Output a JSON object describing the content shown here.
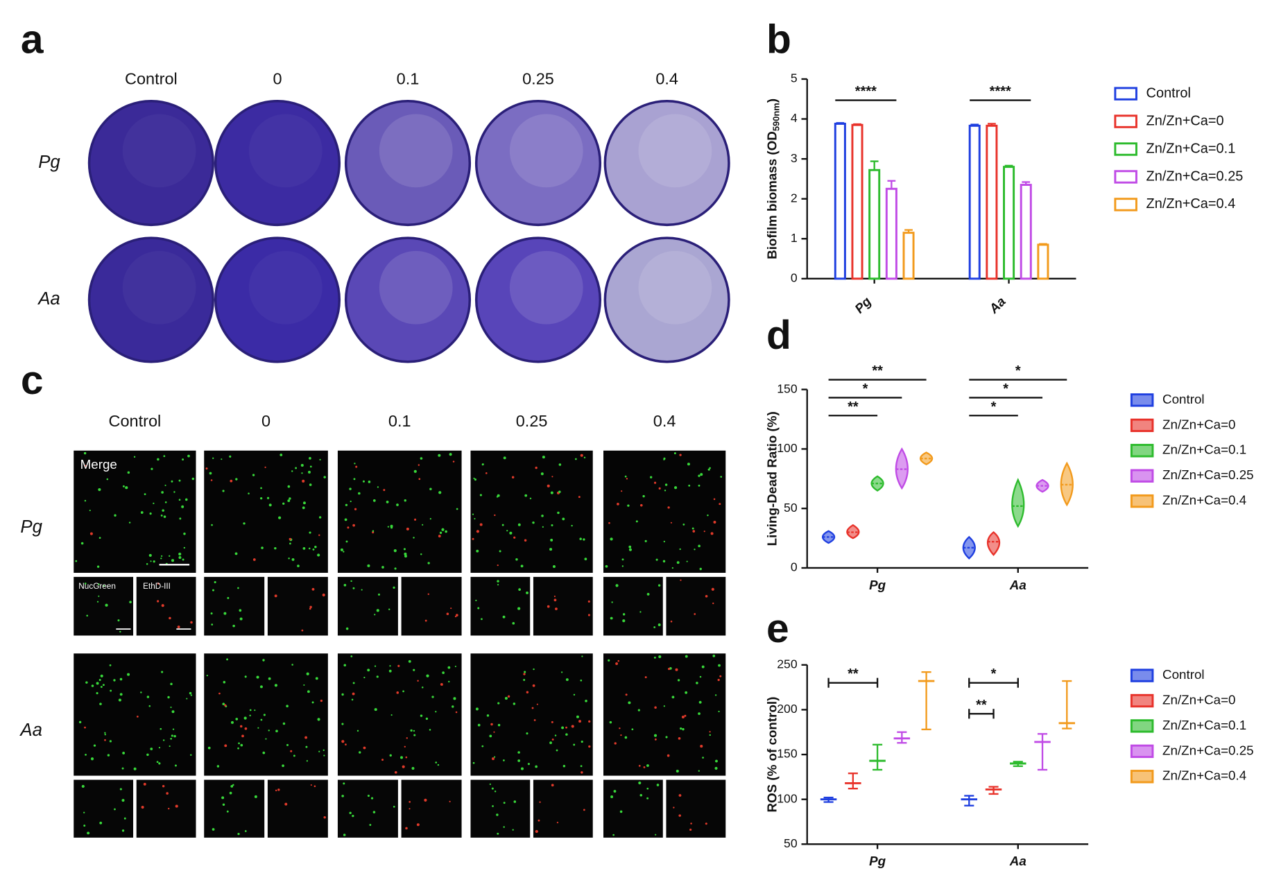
{
  "panel_labels": [
    "a",
    "b",
    "c",
    "d",
    "e"
  ],
  "panel_a": {
    "columns": [
      "Control",
      "0",
      "0.1",
      "0.25",
      "0.4"
    ],
    "rows": [
      "Pg",
      "Aa"
    ]
  },
  "panel_c": {
    "columns": [
      "Control",
      "0",
      "0.1",
      "0.25",
      "0.4"
    ],
    "rows": [
      "Pg",
      "Aa"
    ],
    "channels": [
      "Merge",
      "NucGreen",
      "EthD-III"
    ]
  },
  "chart_data": [
    {
      "type": "bar",
      "ylabel": "Biofilm biomass (OD",
      "ylabel_subscript": "590nm",
      "ylabel_suffix": ")",
      "categories": [
        "Pg",
        "Aa"
      ],
      "ylim": [
        0,
        5
      ],
      "yticks": [
        0,
        1,
        2,
        3,
        4,
        5
      ],
      "legend": "right",
      "series": [
        {
          "name": "Control",
          "color": "#1f3fe0",
          "values": [
            3.88,
            3.83
          ],
          "errors": [
            0.02,
            0.03
          ]
        },
        {
          "name": "Zn/Zn+Ca=0",
          "color": "#e8322a",
          "values": [
            3.85,
            3.83
          ],
          "errors": [
            0.02,
            0.05
          ]
        },
        {
          "name": "Zn/Zn+Ca=0.1",
          "color": "#2dbb2d",
          "values": [
            2.72,
            2.8
          ],
          "errors": [
            0.22,
            0.03
          ]
        },
        {
          "name": "Zn/Zn+Ca=0.25",
          "color": "#c04be6",
          "values": [
            2.25,
            2.35
          ],
          "errors": [
            0.2,
            0.07
          ]
        },
        {
          "name": "Zn/Zn+Ca=0.4",
          "color": "#f29a1c",
          "values": [
            1.15,
            0.85
          ],
          "errors": [
            0.07,
            0.02
          ]
        }
      ],
      "annotations": [
        {
          "text": "****",
          "category": 0,
          "from_series": 0,
          "to_series": 3
        },
        {
          "text": "****",
          "category": 1,
          "from_series": 0,
          "to_series": 3
        }
      ]
    },
    {
      "type": "violin",
      "ylabel": "Living-Dead Ratio (%)",
      "categories": [
        "Pg",
        "Aa"
      ],
      "ylim": [
        0,
        150
      ],
      "yticks": [
        0,
        50,
        100,
        150
      ],
      "legend": "right",
      "series": [
        {
          "name": "Control",
          "color": "#1f3fe0",
          "values": [
            26,
            17
          ],
          "min": [
            21,
            8
          ],
          "max": [
            31,
            26
          ]
        },
        {
          "name": "Zn/Zn+Ca=0",
          "color": "#e8322a",
          "values": [
            30,
            22
          ],
          "min": [
            25,
            11
          ],
          "max": [
            36,
            30
          ]
        },
        {
          "name": "Zn/Zn+Ca=0.1",
          "color": "#2dbb2d",
          "values": [
            71,
            52
          ],
          "min": [
            65,
            35
          ],
          "max": [
            77,
            74
          ]
        },
        {
          "name": "Zn/Zn+Ca=0.25",
          "color": "#c04be6",
          "values": [
            83,
            69
          ],
          "min": [
            67,
            64
          ],
          "max": [
            100,
            74
          ]
        },
        {
          "name": "Zn/Zn+Ca=0.4",
          "color": "#f29a1c",
          "values": [
            92,
            70
          ],
          "min": [
            87,
            53
          ],
          "max": [
            97,
            88
          ]
        }
      ],
      "annotations": [
        {
          "text": "**",
          "category": 0,
          "from_series": 0,
          "to_series": 4
        },
        {
          "text": "*",
          "category": 0,
          "from_series": 0,
          "to_series": 3
        },
        {
          "text": "**",
          "category": 0,
          "from_series": 0,
          "to_series": 2
        },
        {
          "text": "*",
          "category": 1,
          "from_series": 0,
          "to_series": 4
        },
        {
          "text": "*",
          "category": 1,
          "from_series": 0,
          "to_series": 3
        },
        {
          "text": "*",
          "category": 1,
          "from_series": 0,
          "to_series": 2
        }
      ]
    },
    {
      "type": "floating_bar",
      "ylabel": "ROS (% of control)",
      "categories": [
        "Pg",
        "Aa"
      ],
      "ylim": [
        50,
        250
      ],
      "yticks": [
        50,
        100,
        150,
        200,
        250
      ],
      "legend": "right",
      "series": [
        {
          "name": "Control",
          "color": "#1f3fe0",
          "values": [
            100,
            100
          ],
          "min": [
            97,
            93
          ],
          "max": [
            102,
            104
          ]
        },
        {
          "name": "Zn/Zn+Ca=0",
          "color": "#e8322a",
          "values": [
            118,
            111
          ],
          "min": [
            112,
            106
          ],
          "max": [
            129,
            114
          ]
        },
        {
          "name": "Zn/Zn+Ca=0.1",
          "color": "#2dbb2d",
          "values": [
            143,
            140
          ],
          "min": [
            133,
            137
          ],
          "max": [
            161,
            142
          ]
        },
        {
          "name": "Zn/Zn+Ca=0.25",
          "color": "#c04be6",
          "values": [
            168,
            164
          ],
          "min": [
            163,
            133
          ],
          "max": [
            175,
            173
          ]
        },
        {
          "name": "Zn/Zn+Ca=0.4",
          "color": "#f29a1c",
          "values": [
            232,
            185
          ],
          "min": [
            178,
            179
          ],
          "max": [
            242,
            232
          ]
        }
      ],
      "annotations": [
        {
          "text": "**",
          "category": 0,
          "from_series": 0,
          "to_series": 2
        },
        {
          "text": "*",
          "category": 1,
          "from_series": 0,
          "to_series": 2
        },
        {
          "text": "**",
          "category": 1,
          "from_series": 0,
          "to_series": 1
        }
      ]
    }
  ]
}
